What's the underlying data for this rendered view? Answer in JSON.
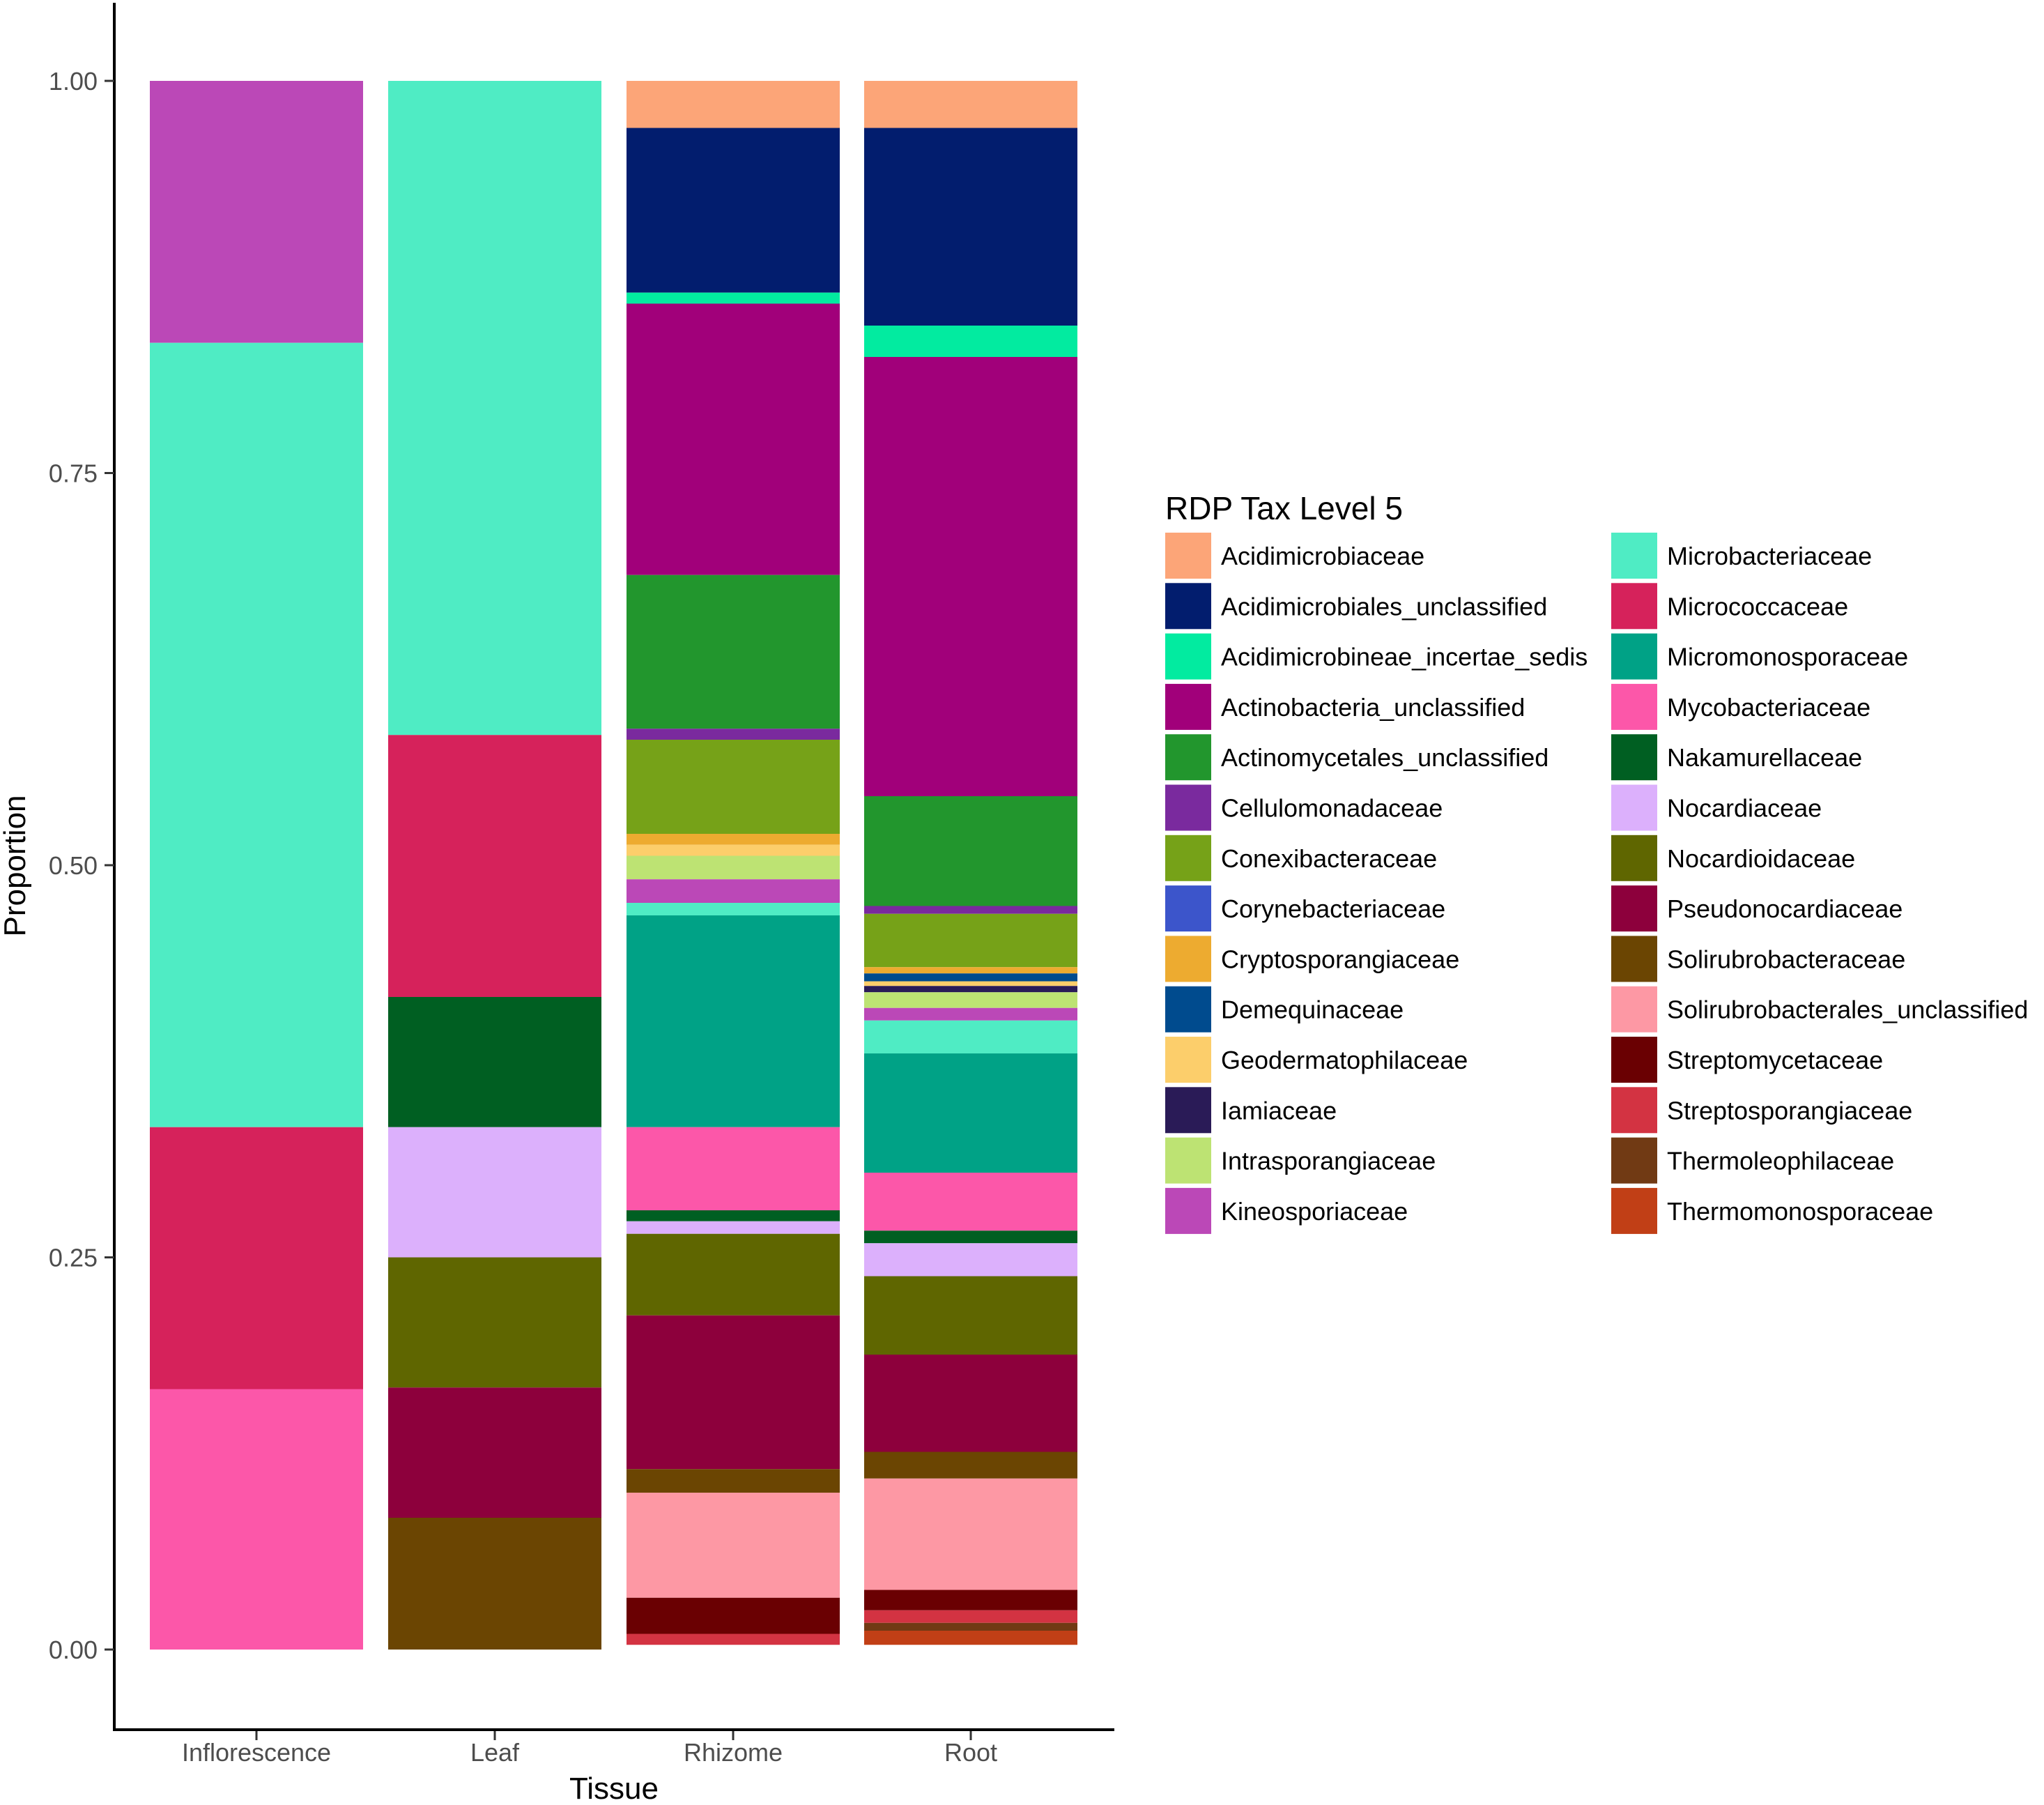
{
  "chart_data": {
    "type": "bar",
    "stacked": true,
    "xlabel": "Tissue",
    "ylabel": "Proportion",
    "ylim": [
      -0.05,
      1.05
    ],
    "yticks": [
      0.0,
      0.25,
      0.5,
      0.75,
      1.0
    ],
    "ytick_labels": [
      "0.00",
      "0.25",
      "0.50",
      "0.75",
      "1.00"
    ],
    "categories": [
      "Inflorescence",
      "Leaf",
      "Rhizome",
      "Root"
    ],
    "legend": {
      "title": "RDP Tax Level 5",
      "position": "right",
      "columns": 2
    },
    "taxa": [
      {
        "name": "Acidimicrobiaceae",
        "color": "#FCA578"
      },
      {
        "name": "Acidimicrobiales_unclassified",
        "color": "#021D6E"
      },
      {
        "name": "Acidimicrobineae_incertae_sedis",
        "color": "#02EBA0"
      },
      {
        "name": "Actinobacteria_unclassified",
        "color": "#A1007A"
      },
      {
        "name": "Actinomycetales_unclassified",
        "color": "#22962D"
      },
      {
        "name": "Cellulomonadaceae",
        "color": "#7A2A9E"
      },
      {
        "name": "Conexibacteraceae",
        "color": "#76A218"
      },
      {
        "name": "Corynebacteriaceae",
        "color": "#3C55CB"
      },
      {
        "name": "Cryptosporangiaceae",
        "color": "#EDAB30"
      },
      {
        "name": "Demequinaceae",
        "color": "#004B8E"
      },
      {
        "name": "Geodermatophilaceae",
        "color": "#FCCE6B"
      },
      {
        "name": "Iamiaceae",
        "color": "#2A1B57"
      },
      {
        "name": "Intrasporangiaceae",
        "color": "#BDE373"
      },
      {
        "name": "Kineosporiaceae",
        "color": "#BB48B7"
      },
      {
        "name": "Microbacteriaceae",
        "color": "#4FECC4"
      },
      {
        "name": "Micrococcaceae",
        "color": "#D6225B"
      },
      {
        "name": "Micromonosporaceae",
        "color": "#00A286"
      },
      {
        "name": "Mycobacteriaceae",
        "color": "#FC57A9"
      },
      {
        "name": "Nakamurellaceae",
        "color": "#005F22"
      },
      {
        "name": "Nocardiaceae",
        "color": "#DCB0FC"
      },
      {
        "name": "Nocardioidaceae",
        "color": "#5F6600"
      },
      {
        "name": "Pseudonocardiaceae",
        "color": "#8D003C"
      },
      {
        "name": "Solirubrobacteraceae",
        "color": "#6B4502"
      },
      {
        "name": "Solirubrobacterales_unclassified",
        "color": "#FD98A4"
      },
      {
        "name": "Streptomycetaceae",
        "color": "#6A0002"
      },
      {
        "name": "Streptosporangiaceae",
        "color": "#D33342"
      },
      {
        "name": "Thermoleophilaceae",
        "color": "#713A14"
      },
      {
        "name": "Thermomonosporaceae",
        "color": "#C13F16"
      }
    ],
    "stacks": [
      {
        "category": "Inflorescence",
        "segments": [
          {
            "taxon": "Kineosporiaceae",
            "value": 0.167
          },
          {
            "taxon": "Microbacteriaceae",
            "value": 0.5
          },
          {
            "taxon": "Micrococcaceae",
            "value": 0.167
          },
          {
            "taxon": "Mycobacteriaceae",
            "value": 0.166
          }
        ]
      },
      {
        "category": "Leaf",
        "segments": [
          {
            "taxon": "Microbacteriaceae",
            "value": 0.417
          },
          {
            "taxon": "Micrococcaceae",
            "value": 0.167
          },
          {
            "taxon": "Nakamurellaceae",
            "value": 0.083
          },
          {
            "taxon": "Nocardiaceae",
            "value": 0.083
          },
          {
            "taxon": "Nocardioidaceae",
            "value": 0.083
          },
          {
            "taxon": "Pseudonocardiaceae",
            "value": 0.083
          },
          {
            "taxon": "Solirubrobacteraceae",
            "value": 0.084
          }
        ]
      },
      {
        "category": "Rhizome",
        "segments": [
          {
            "taxon": "Acidimicrobiaceae",
            "value": 0.03
          },
          {
            "taxon": "Acidimicrobiales_unclassified",
            "value": 0.105
          },
          {
            "taxon": "Acidimicrobineae_incertae_sedis",
            "value": 0.007
          },
          {
            "taxon": "Actinobacteria_unclassified",
            "value": 0.173
          },
          {
            "taxon": "Actinomycetales_unclassified",
            "value": 0.098
          },
          {
            "taxon": "Cellulomonadaceae",
            "value": 0.007
          },
          {
            "taxon": "Conexibacteraceae",
            "value": 0.06
          },
          {
            "taxon": "Cryptosporangiaceae",
            "value": 0.007
          },
          {
            "taxon": "Geodermatophilaceae",
            "value": 0.007
          },
          {
            "taxon": "Intrasporangiaceae",
            "value": 0.015
          },
          {
            "taxon": "Kineosporiaceae",
            "value": 0.015
          },
          {
            "taxon": "Microbacteriaceae",
            "value": 0.008
          },
          {
            "taxon": "Micromonosporaceae",
            "value": 0.135
          },
          {
            "taxon": "Mycobacteriaceae",
            "value": 0.053
          },
          {
            "taxon": "Nakamurellaceae",
            "value": 0.007
          },
          {
            "taxon": "Nocardiaceae",
            "value": 0.008
          },
          {
            "taxon": "Nocardioidaceae",
            "value": 0.052
          },
          {
            "taxon": "Pseudonocardiaceae",
            "value": 0.098
          },
          {
            "taxon": "Solirubrobacteraceae",
            "value": 0.015
          },
          {
            "taxon": "Solirubrobacterales_unclassified",
            "value": 0.067
          },
          {
            "taxon": "Streptomycetaceae",
            "value": 0.023
          },
          {
            "taxon": "Streptosporangiaceae",
            "value": 0.007
          }
        ]
      },
      {
        "category": "Root",
        "segments": [
          {
            "taxon": "Acidimicrobiaceae",
            "value": 0.03
          },
          {
            "taxon": "Acidimicrobiales_unclassified",
            "value": 0.126
          },
          {
            "taxon": "Acidimicrobineae_incertae_sedis",
            "value": 0.02
          },
          {
            "taxon": "Actinobacteria_unclassified",
            "value": 0.28
          },
          {
            "taxon": "Actinomycetales_unclassified",
            "value": 0.07
          },
          {
            "taxon": "Cellulomonadaceae",
            "value": 0.005
          },
          {
            "taxon": "Conexibacteraceae",
            "value": 0.034
          },
          {
            "taxon": "Cryptosporangiaceae",
            "value": 0.004
          },
          {
            "taxon": "Demequinaceae",
            "value": 0.005
          },
          {
            "taxon": "Geodermatophilaceae",
            "value": 0.003
          },
          {
            "taxon": "Iamiaceae",
            "value": 0.004
          },
          {
            "taxon": "Intrasporangiaceae",
            "value": 0.01
          },
          {
            "taxon": "Kineosporiaceae",
            "value": 0.008
          },
          {
            "taxon": "Microbacteriaceae",
            "value": 0.021
          },
          {
            "taxon": "Micromonosporaceae",
            "value": 0.076
          },
          {
            "taxon": "Mycobacteriaceae",
            "value": 0.037
          },
          {
            "taxon": "Nakamurellaceae",
            "value": 0.008
          },
          {
            "taxon": "Nocardiaceae",
            "value": 0.021
          },
          {
            "taxon": "Nocardioidaceae",
            "value": 0.05
          },
          {
            "taxon": "Pseudonocardiaceae",
            "value": 0.062
          },
          {
            "taxon": "Solirubrobacteraceae",
            "value": 0.017
          },
          {
            "taxon": "Solirubrobacterales_unclassified",
            "value": 0.071
          },
          {
            "taxon": "Streptomycetaceae",
            "value": 0.013
          },
          {
            "taxon": "Streptosporangiaceae",
            "value": 0.008
          },
          {
            "taxon": "Thermoleophilaceae",
            "value": 0.005
          },
          {
            "taxon": "Thermomonosporaceae",
            "value": 0.009
          }
        ]
      }
    ]
  }
}
